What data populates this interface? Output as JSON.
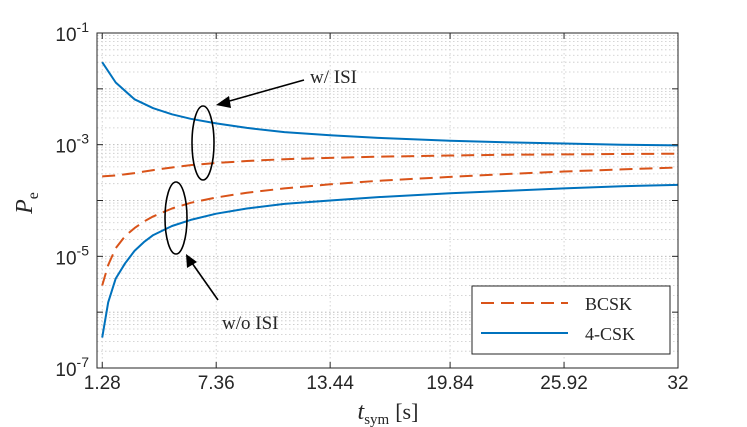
{
  "chart_data": {
    "type": "line",
    "title": "",
    "xlabel_main": "t",
    "xlabel_sub": "sym",
    "xlabel_unit": "[s]",
    "ylabel_main": "P",
    "ylabel_sub": "e",
    "xlim": [
      1.0,
      32.0
    ],
    "ylim_log10": [
      -7,
      -1
    ],
    "x_ticks": [
      1.28,
      7.36,
      13.44,
      19.84,
      25.92,
      32
    ],
    "x_tick_labels": [
      "1.28",
      "7.36",
      "13.44",
      "19.84",
      "25.92",
      "32"
    ],
    "y_ticks_exp": [
      -7,
      -5,
      -3,
      -1
    ],
    "y_tick_base": "10",
    "y_tick_exponents": [
      "-7",
      "-5",
      "-3",
      "-1"
    ],
    "grid": true,
    "legend_position": "bottom-right",
    "series": [
      {
        "name": "BCSK",
        "isi": true,
        "color": "#D95319",
        "style": "dashed",
        "x": [
          1.28,
          2.0,
          3.0,
          4.0,
          5.0,
          6.0,
          7.36,
          9.0,
          11.0,
          13.44,
          16.0,
          19.84,
          23.0,
          25.92,
          29.0,
          32.0
        ],
        "y": [
          0.00027,
          0.00028,
          0.00031,
          0.00035,
          0.00039,
          0.00043,
          0.00047,
          0.00051,
          0.00055,
          0.00058,
          0.00061,
          0.00064,
          0.00066,
          0.00067,
          0.00068,
          0.00069
        ]
      },
      {
        "name": "4-CSK",
        "isi": true,
        "color": "#0072BD",
        "style": "solid",
        "x": [
          1.28,
          2.0,
          3.0,
          4.0,
          5.0,
          6.0,
          7.36,
          9.0,
          11.0,
          13.44,
          16.0,
          19.84,
          23.0,
          25.92,
          29.0,
          32.0
        ],
        "y": [
          0.03,
          0.013,
          0.0065,
          0.0045,
          0.0035,
          0.0029,
          0.0024,
          0.002,
          0.00168,
          0.00148,
          0.00132,
          0.00118,
          0.0011,
          0.00105,
          0.001,
          0.00097
        ]
      },
      {
        "name": "BCSK",
        "isi": false,
        "color": "#D95319",
        "style": "dashed",
        "x": [
          1.28,
          1.6,
          2.0,
          2.5,
          3.0,
          3.5,
          4.0,
          5.0,
          6.0,
          7.36,
          9.0,
          11.0,
          13.44,
          16.0,
          19.84,
          23.0,
          25.92,
          29.0,
          32.0
        ],
        "y": [
          3e-06,
          7e-06,
          1.4e-05,
          2.3e-05,
          3.2e-05,
          4.2e-05,
          5.2e-05,
          7.2e-05,
          9.1e-05,
          0.000113,
          0.000138,
          0.000165,
          0.000195,
          0.000225,
          0.000265,
          0.0003,
          0.00033,
          0.00036,
          0.00039
        ]
      },
      {
        "name": "4-CSK",
        "isi": false,
        "color": "#0072BD",
        "style": "solid",
        "x": [
          1.28,
          1.6,
          2.0,
          2.5,
          3.0,
          3.5,
          4.0,
          5.0,
          6.0,
          7.36,
          9.0,
          11.0,
          13.44,
          16.0,
          19.84,
          23.0,
          25.92,
          29.0,
          32.0
        ],
        "y": [
          3.5e-07,
          1.5e-06,
          4e-06,
          7.5e-06,
          1.25e-05,
          1.8e-05,
          2.4e-05,
          3.5e-05,
          4.5e-05,
          5.8e-05,
          7.2e-05,
          8.7e-05,
          0.0001,
          0.000115,
          0.000135,
          0.00015,
          0.000165,
          0.00018,
          0.00019
        ]
      }
    ],
    "legend": [
      {
        "label": "BCSK",
        "color": "#D95319",
        "style": "dashed"
      },
      {
        "label": "4-CSK",
        "color": "#0072BD",
        "style": "solid"
      }
    ],
    "annotations": [
      {
        "text": "w/ ISI",
        "target_x": 7.36,
        "target_y": 0.002
      },
      {
        "text": "w/o ISI",
        "target_x": 5.7,
        "target_y": 2e-05
      }
    ]
  }
}
